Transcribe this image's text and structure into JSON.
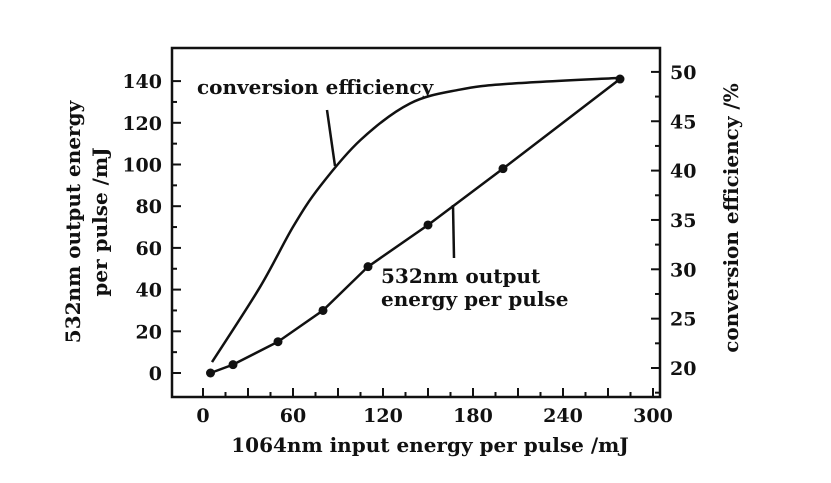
{
  "chart_data": {
    "type": "line",
    "xlabel": "1064nm input energy per pulse /mJ",
    "ylabel_lines": [
      "532nm output energy",
      "per pulse /mJ"
    ],
    "y2label": "conversion efficiency /%",
    "xlim": [
      0,
      300
    ],
    "ylim": [
      0,
      140
    ],
    "y2lim": [
      20,
      50
    ],
    "xticks": [
      0,
      60,
      120,
      180,
      240,
      300
    ],
    "yticks": [
      0,
      20,
      40,
      60,
      80,
      100,
      120,
      140
    ],
    "y2ticks": [
      20,
      25,
      30,
      35,
      40,
      45,
      50
    ],
    "grid": false,
    "series": [
      {
        "name": "532nm output energy per pulse",
        "name_lines": [
          "532nm output",
          "energy per pulse"
        ],
        "axis": "left",
        "markers": true,
        "x": [
          5,
          20,
          50,
          80,
          110,
          150,
          200,
          278
        ],
        "y": [
          0,
          4,
          15,
          30,
          51,
          71,
          98,
          141
        ]
      },
      {
        "name": "conversion efficiency",
        "axis": "right",
        "markers": false,
        "x": [
          6,
          38,
          60,
          78,
          105,
          138,
          171,
          204,
          278
        ],
        "y": [
          20.6,
          28.2,
          34.3,
          38.4,
          43.1,
          46.8,
          48.2,
          48.8,
          49.4
        ]
      }
    ],
    "colors": {
      "line": "#111111",
      "background": "#ffffff"
    }
  }
}
